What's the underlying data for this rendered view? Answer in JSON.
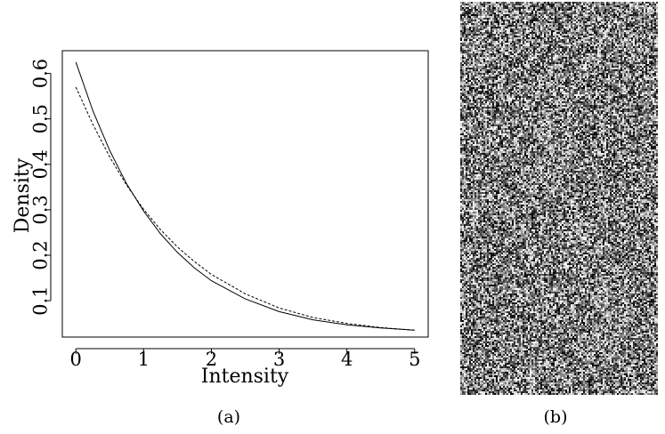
{
  "panels": {
    "a": {
      "caption": "(a)"
    },
    "b": {
      "caption": "(b)",
      "image_description_icon": "noise-texture"
    }
  },
  "chart_data": {
    "type": "line",
    "title": "",
    "xlabel": "Intensity",
    "ylabel": "Density",
    "xlim": [
      -0.2,
      5.2
    ],
    "ylim": [
      0.02,
      0.65
    ],
    "xticks": [
      0,
      1,
      2,
      3,
      4,
      5
    ],
    "xtick_labels": [
      "0",
      "1",
      "2",
      "3",
      "4",
      "5"
    ],
    "yticks": [
      0.1,
      0.2,
      0.3,
      0.4,
      0.5,
      0.6
    ],
    "ytick_labels": [
      "0.1",
      "0.2",
      "0.3",
      "0.4",
      "0.5",
      "0.6"
    ],
    "grid": false,
    "legend": "none",
    "series": [
      {
        "style": "solid",
        "color": "#000000",
        "x": [
          0,
          0.25,
          0.5,
          0.75,
          1,
          1.25,
          1.5,
          1.75,
          2,
          2.5,
          3,
          3.5,
          4,
          4.5,
          5
        ],
        "y": [
          0.625,
          0.518,
          0.43,
          0.357,
          0.297,
          0.247,
          0.206,
          0.172,
          0.144,
          0.104,
          0.076,
          0.058,
          0.047,
          0.04,
          0.035
        ]
      },
      {
        "style": "dashed",
        "color": "#000000",
        "x": [
          0,
          0.25,
          0.5,
          0.75,
          1,
          1.25,
          1.5,
          1.75,
          2,
          2.5,
          3,
          3.5,
          4,
          4.5,
          5
        ],
        "y": [
          0.57,
          0.488,
          0.416,
          0.354,
          0.301,
          0.256,
          0.218,
          0.186,
          0.158,
          0.115,
          0.084,
          0.063,
          0.05,
          0.041,
          0.035
        ]
      }
    ]
  }
}
